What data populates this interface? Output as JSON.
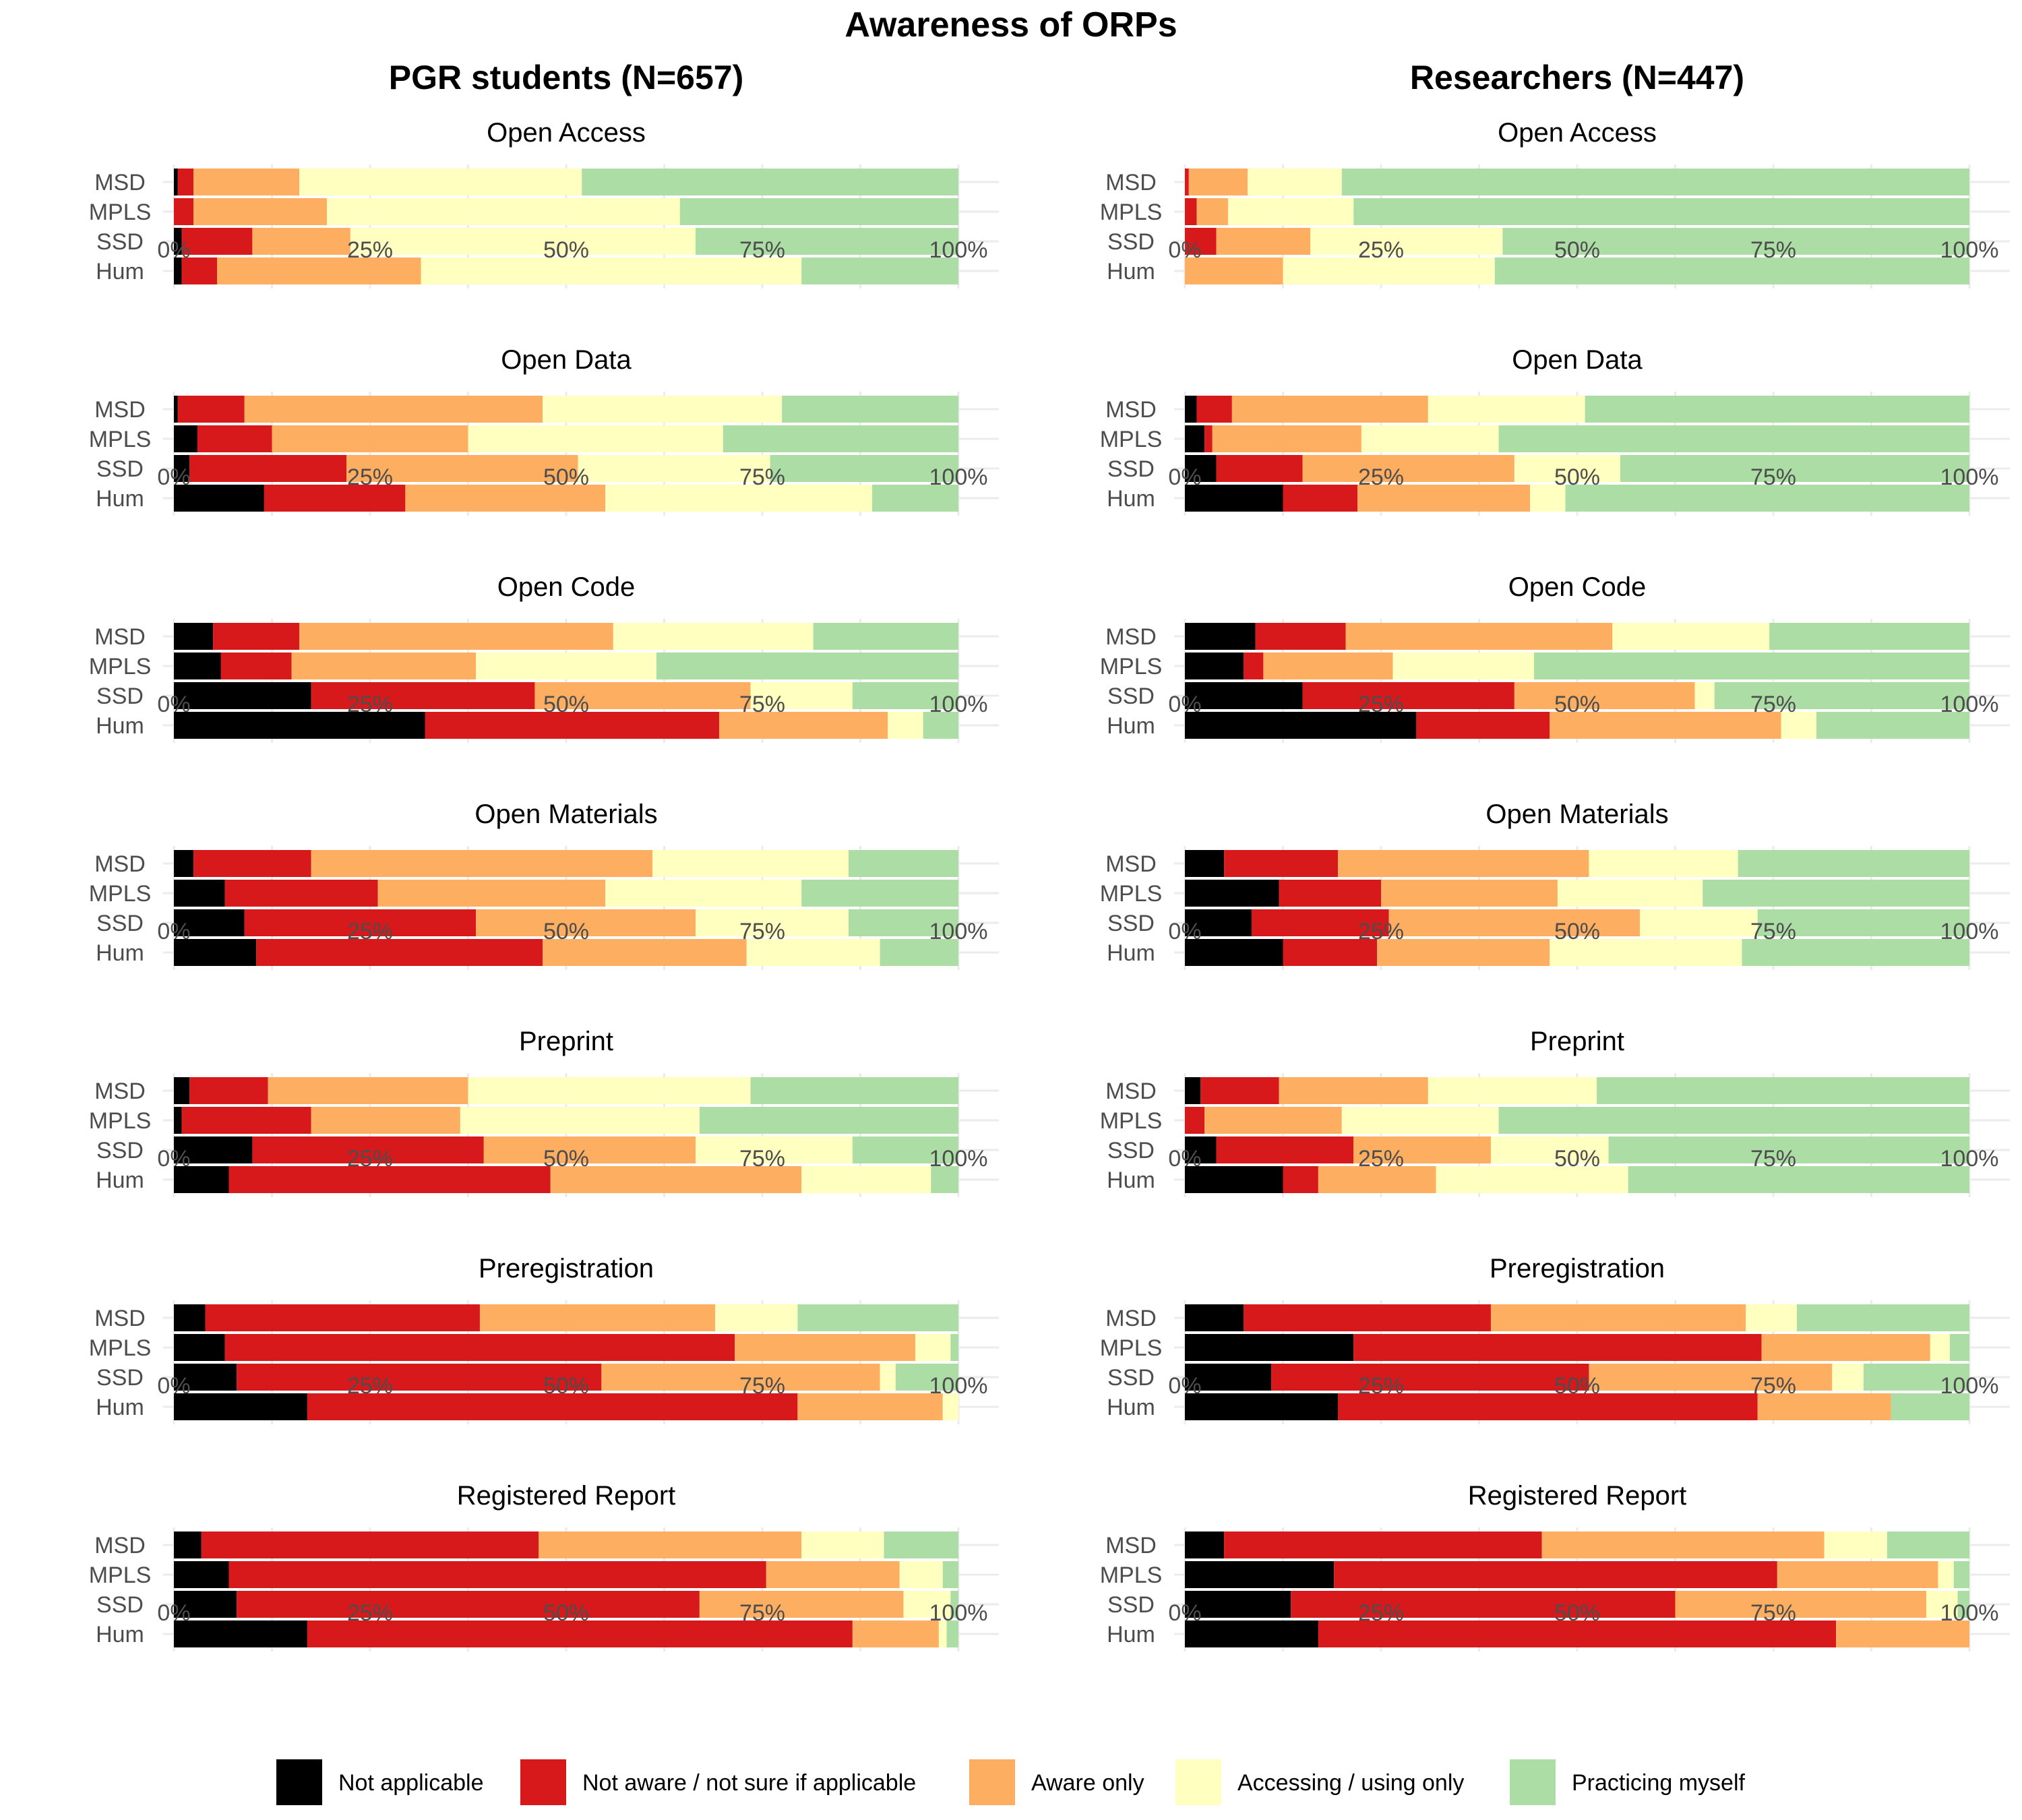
{
  "title": "Awareness of ORPs",
  "columns": [
    "PGR students (N=657)",
    "Researchers (N=447)"
  ],
  "categories": [
    "MSD",
    "MPLS",
    "SSD",
    "Hum"
  ],
  "x_ticks": [
    "0%",
    "25%",
    "50%",
    "75%",
    "100%"
  ],
  "legend": [
    {
      "name": "Not applicable",
      "color": "#000000"
    },
    {
      "name": "Not aware / not sure if applicable",
      "color": "#d7191c"
    },
    {
      "name": "Aware only",
      "color": "#fdae61"
    },
    {
      "name": "Accessing / using only",
      "color": "#ffffbf"
    },
    {
      "name": "Practicing myself",
      "color": "#abdda4"
    }
  ],
  "chart_data": {
    "type": "bar",
    "orientation": "horizontal",
    "stacked": true,
    "units": "percent",
    "xlim": [
      0,
      100
    ],
    "legend_position": "bottom",
    "grid": true,
    "series_order": [
      "Not applicable",
      "Not aware / not sure if applicable",
      "Aware only",
      "Accessing / using only",
      "Practicing myself"
    ],
    "panels": [
      {
        "title": "Open Access",
        "column": "PGR students (N=657)",
        "rows": [
          [
            0.5,
            2,
            13.5,
            36,
            48
          ],
          [
            0,
            2.5,
            17,
            45,
            35.5
          ],
          [
            1,
            9,
            12.5,
            44,
            33.5
          ],
          [
            1,
            4.5,
            26,
            48.5,
            20
          ]
        ]
      },
      {
        "title": "Open Access",
        "column": "Researchers (N=447)",
        "rows": [
          [
            0,
            0.5,
            7.5,
            12,
            80
          ],
          [
            0,
            1.5,
            4,
            16,
            78.5
          ],
          [
            0,
            4,
            12,
            24.5,
            59.5
          ],
          [
            0,
            0,
            12.5,
            27,
            60.5
          ]
        ]
      },
      {
        "title": "Open Data",
        "column": "PGR students (N=657)",
        "rows": [
          [
            0.5,
            8.5,
            38,
            30.5,
            22.5
          ],
          [
            3,
            9.5,
            25,
            32.5,
            30
          ],
          [
            2,
            20,
            29.5,
            24.5,
            24
          ],
          [
            11.5,
            18,
            25.5,
            34,
            11
          ]
        ]
      },
      {
        "title": "Open Data",
        "column": "Researchers (N=447)",
        "rows": [
          [
            1.5,
            4.5,
            25,
            20,
            49
          ],
          [
            2.5,
            1,
            19,
            17.5,
            60
          ],
          [
            4,
            11,
            27,
            13.5,
            44.5
          ],
          [
            12.5,
            9.5,
            22,
            4.5,
            51.5
          ]
        ]
      },
      {
        "title": "Open Code",
        "column": "PGR students (N=657)",
        "rows": [
          [
            5,
            11,
            40,
            25.5,
            18.5
          ],
          [
            6,
            9,
            23.5,
            23,
            38.5
          ],
          [
            17.5,
            28.5,
            27.5,
            13,
            13.5
          ],
          [
            32,
            37.5,
            21.5,
            4.5,
            4.5
          ]
        ]
      },
      {
        "title": "Open Code",
        "column": "Researchers (N=447)",
        "rows": [
          [
            9,
            11.5,
            34,
            20,
            25.5
          ],
          [
            7.5,
            2.5,
            16.5,
            18,
            55.5
          ],
          [
            15,
            27,
            23,
            2.5,
            32.5
          ],
          [
            29.5,
            17,
            29.5,
            4.5,
            19.5
          ]
        ]
      },
      {
        "title": "Open Materials",
        "column": "PGR students (N=657)",
        "rows": [
          [
            2.5,
            15,
            43.5,
            25,
            14
          ],
          [
            6.5,
            19.5,
            29,
            25,
            20
          ],
          [
            9,
            29.5,
            28,
            19.5,
            14
          ],
          [
            10.5,
            36.5,
            26,
            17,
            10
          ]
        ]
      },
      {
        "title": "Open Materials",
        "column": "Researchers (N=447)",
        "rows": [
          [
            5,
            14.5,
            32,
            19,
            29.5
          ],
          [
            12,
            13,
            22.5,
            18.5,
            34
          ],
          [
            8.5,
            17.5,
            32,
            15,
            27
          ],
          [
            12.5,
            12,
            22,
            24.5,
            29
          ]
        ]
      },
      {
        "title": "Preprint",
        "column": "PGR students (N=657)",
        "rows": [
          [
            2,
            10,
            25.5,
            36,
            26.5
          ],
          [
            1,
            16.5,
            19,
            30.5,
            33
          ],
          [
            10,
            29.5,
            27,
            20,
            13.5
          ],
          [
            7,
            41,
            32,
            16.5,
            3.5
          ]
        ]
      },
      {
        "title": "Preprint",
        "column": "Researchers (N=447)",
        "rows": [
          [
            2,
            10,
            19,
            21.5,
            47.5
          ],
          [
            0,
            2.5,
            17.5,
            20,
            60
          ],
          [
            4,
            17.5,
            17.5,
            15,
            46
          ],
          [
            12.5,
            4.5,
            15,
            24.5,
            43.5
          ]
        ]
      },
      {
        "title": "Preregistration",
        "column": "PGR students (N=657)",
        "rows": [
          [
            4,
            35,
            30,
            10.5,
            20.5
          ],
          [
            6.5,
            65,
            23,
            4.5,
            1
          ],
          [
            8,
            46.5,
            35.5,
            2,
            8
          ],
          [
            17,
            62.5,
            18.5,
            2,
            0
          ]
        ]
      },
      {
        "title": "Preregistration",
        "column": "Researchers (N=447)",
        "rows": [
          [
            7.5,
            31.5,
            32.5,
            6.5,
            22
          ],
          [
            21.5,
            52,
            21.5,
            2.5,
            2.5
          ],
          [
            11,
            40.5,
            31,
            4,
            13.5
          ],
          [
            19.5,
            53.5,
            17,
            0,
            10
          ]
        ]
      },
      {
        "title": "Registered Report",
        "column": "PGR students (N=657)",
        "rows": [
          [
            3.5,
            43,
            33.5,
            10.5,
            9.5
          ],
          [
            7,
            68.5,
            17,
            5.5,
            2
          ],
          [
            8,
            59,
            26,
            6,
            1
          ],
          [
            17,
            69.5,
            11,
            1,
            1.5
          ]
        ]
      },
      {
        "title": "Registered Report",
        "column": "Researchers (N=447)",
        "rows": [
          [
            5,
            40.5,
            36,
            8,
            10.5
          ],
          [
            19,
            56.5,
            20.5,
            2,
            2
          ],
          [
            13.5,
            49,
            32,
            4,
            1.5
          ],
          [
            17,
            66,
            17,
            0,
            0
          ]
        ]
      }
    ]
  }
}
